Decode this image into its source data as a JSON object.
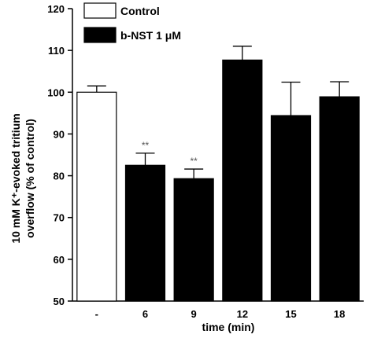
{
  "chart_data": {
    "type": "bar",
    "categories": [
      "-",
      "6",
      "9",
      "12",
      "15",
      "18"
    ],
    "values": [
      100.0,
      82.5,
      79.3,
      107.7,
      94.4,
      98.9
    ],
    "errors": [
      1.5,
      2.9,
      2.3,
      3.3,
      8.0,
      3.6
    ],
    "significance": [
      "",
      "**",
      "**",
      "",
      "",
      ""
    ],
    "bar_fills": [
      "#ffffff",
      "#000000",
      "#000000",
      "#000000",
      "#000000",
      "#000000"
    ],
    "xlabel": "time (min)",
    "ylabel_line1": "10 mM K⁺-evoked tritium",
    "ylabel_line2": "overflow (% of control)",
    "ylim": [
      50,
      120
    ],
    "yticks": [
      50,
      60,
      70,
      80,
      90,
      100,
      110,
      120
    ],
    "legend": {
      "placement": "top-left",
      "entries": [
        {
          "label": "Control",
          "fill": "#ffffff"
        },
        {
          "label": "b-NST 1 μM",
          "fill": "#000000"
        }
      ]
    },
    "grid": false
  }
}
